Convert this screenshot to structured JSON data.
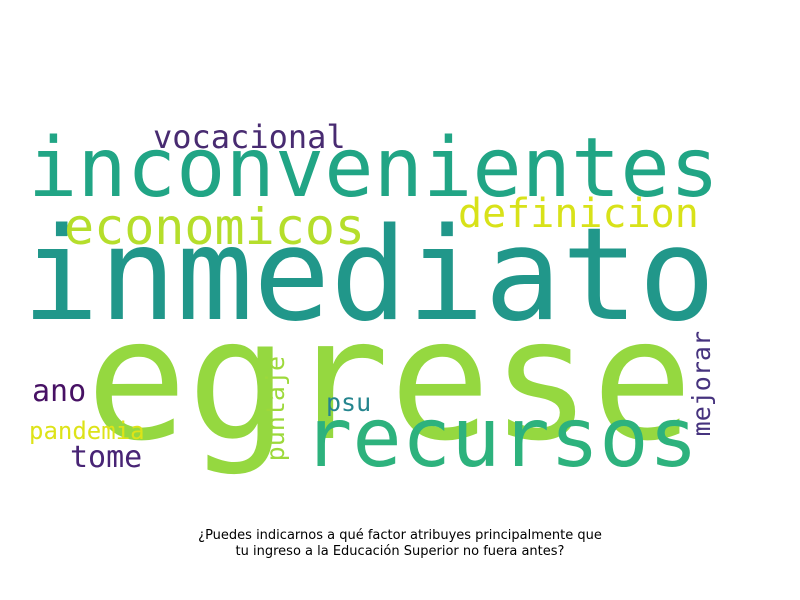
{
  "wordcloud": {
    "words": [
      {
        "id": "inconvenientes",
        "text": "inconvenientes",
        "color": "#21a585"
      },
      {
        "id": "inmediato",
        "text": "inmediato",
        "color": "#21978a"
      },
      {
        "id": "egrese",
        "text": "egrese",
        "color": "#95d840"
      },
      {
        "id": "recursos",
        "text": "recursos",
        "color": "#2db27d"
      },
      {
        "id": "economicos",
        "text": "economicos",
        "color": "#b5de2b"
      },
      {
        "id": "definicion",
        "text": "definicion",
        "color": "#d8e219"
      },
      {
        "id": "vocacional",
        "text": "vocacional",
        "color": "#482b71"
      },
      {
        "id": "ano",
        "text": "ano",
        "color": "#471164"
      },
      {
        "id": "pandemia",
        "text": "pandemia",
        "color": "#dde318"
      },
      {
        "id": "tome",
        "text": "tome",
        "color": "#482475"
      },
      {
        "id": "puntaje",
        "text": "puntaje",
        "color": "#9dd93b"
      },
      {
        "id": "psu",
        "text": "psu",
        "color": "#25858e"
      },
      {
        "id": "mejorar",
        "text": "mejorar",
        "color": "#46337e"
      }
    ]
  },
  "caption": {
    "line1": "¿Puedes indicarnos a qué factor atribuyes principalmente que",
    "line2": "tu ingreso a la Educación Superior no fuera antes?"
  }
}
